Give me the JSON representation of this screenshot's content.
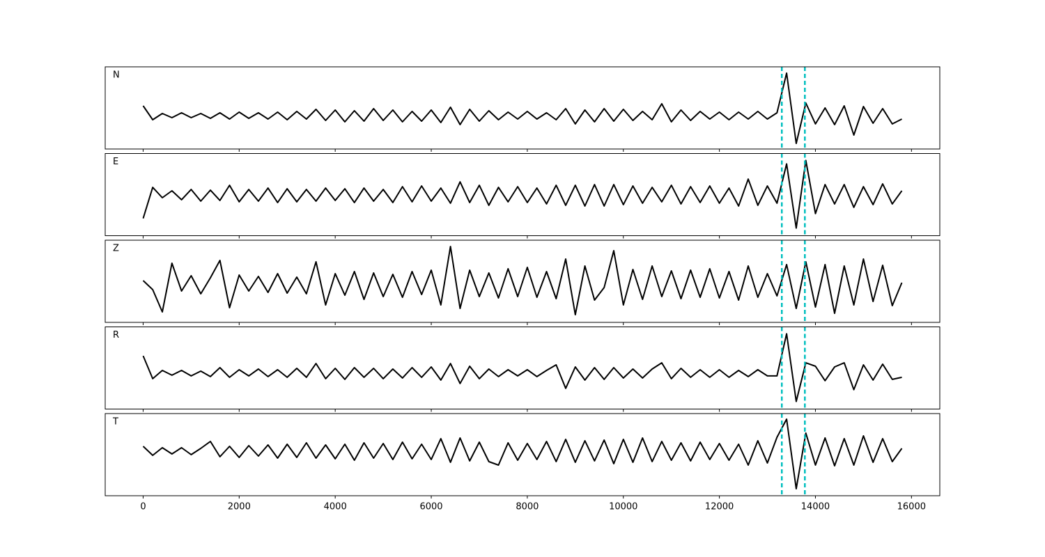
{
  "chart_data": {
    "type": "line",
    "subplots": true,
    "x": [
      0,
      200,
      400,
      600,
      800,
      1000,
      1200,
      1400,
      1600,
      1800,
      2000,
      2200,
      2400,
      2600,
      2800,
      3000,
      3200,
      3400,
      3600,
      3800,
      4000,
      4200,
      4400,
      4600,
      4800,
      5000,
      5200,
      5400,
      5600,
      5800,
      6000,
      6200,
      6400,
      6600,
      6800,
      7000,
      7200,
      7400,
      7600,
      7800,
      8000,
      8200,
      8400,
      8600,
      8800,
      9000,
      9200,
      9400,
      9600,
      9800,
      10000,
      10200,
      10400,
      10600,
      10800,
      11000,
      11200,
      11400,
      11600,
      11800,
      12000,
      12200,
      12400,
      12600,
      12800,
      13000,
      13200,
      13400,
      13600,
      13800,
      14000,
      14200,
      14400,
      14600,
      14800,
      15000,
      15200,
      15400,
      15600,
      15800
    ],
    "xlim": [
      -790,
      16590
    ],
    "xticks": [
      0,
      2000,
      4000,
      6000,
      8000,
      10000,
      12000,
      14000,
      16000
    ],
    "vlines": [
      13300,
      13780
    ],
    "vline_color": "#00bfbf",
    "series": [
      {
        "name": "N",
        "color": "#000000",
        "ylim": [
          -4.8,
          7.0
        ],
        "values": [
          1.4,
          -0.6,
          0.3,
          -0.3,
          0.4,
          -0.3,
          0.3,
          -0.4,
          0.4,
          -0.5,
          0.5,
          -0.4,
          0.4,
          -0.5,
          0.5,
          -0.6,
          0.6,
          -0.5,
          0.9,
          -0.7,
          0.8,
          -0.9,
          0.7,
          -0.8,
          1.0,
          -0.7,
          0.8,
          -0.9,
          0.6,
          -0.8,
          0.8,
          -1.0,
          1.2,
          -1.3,
          0.9,
          -0.8,
          0.7,
          -0.6,
          0.5,
          -0.5,
          0.6,
          -0.5,
          0.4,
          -0.6,
          1.0,
          -1.2,
          0.8,
          -0.9,
          1.0,
          -0.8,
          0.9,
          -0.7,
          0.6,
          -0.6,
          1.7,
          -0.9,
          0.8,
          -0.7,
          0.6,
          -0.5,
          0.5,
          -0.6,
          0.5,
          -0.5,
          0.6,
          -0.5,
          0.4,
          6.1,
          -4.0,
          1.8,
          -1.2,
          1.1,
          -1.3,
          1.4,
          -2.8,
          1.3,
          -1.1,
          1.0,
          -1.2,
          -0.5
        ]
      },
      {
        "name": "E",
        "color": "#000000",
        "ylim": [
          -5.9,
          6.0
        ],
        "values": [
          -3.4,
          1.1,
          -0.4,
          0.6,
          -0.7,
          0.8,
          -0.9,
          0.7,
          -0.8,
          1.4,
          -1.0,
          0.8,
          -0.9,
          1.0,
          -1.1,
          0.9,
          -1.0,
          0.8,
          -0.9,
          1.0,
          -0.8,
          0.9,
          -1.1,
          1.0,
          -0.9,
          0.8,
          -1.1,
          1.2,
          -1.0,
          1.3,
          -0.9,
          1.0,
          -1.2,
          1.9,
          -1.1,
          1.4,
          -1.5,
          1.1,
          -1.0,
          1.2,
          -1.1,
          1.0,
          -1.3,
          1.4,
          -1.5,
          1.4,
          -1.6,
          1.5,
          -1.6,
          1.5,
          -1.4,
          1.3,
          -1.2,
          1.1,
          -1.0,
          1.4,
          -1.3,
          1.2,
          -1.1,
          1.3,
          -1.2,
          1.0,
          -1.6,
          2.3,
          -1.5,
          1.3,
          -1.2,
          4.5,
          -4.8,
          5.0,
          -2.7,
          1.5,
          -1.3,
          1.5,
          -1.8,
          1.2,
          -1.4,
          1.6,
          -1.3,
          0.6
        ]
      },
      {
        "name": "Z",
        "color": "#000000",
        "ylim": [
          -5.5,
          6.3
        ],
        "values": [
          0.5,
          -0.8,
          -4.0,
          3.0,
          -1.0,
          1.2,
          -1.4,
          0.9,
          3.4,
          -3.4,
          1.3,
          -1.0,
          1.1,
          -1.2,
          1.5,
          -1.3,
          1.0,
          -1.4,
          3.2,
          -3.0,
          1.5,
          -1.6,
          1.8,
          -2.2,
          1.6,
          -1.8,
          1.4,
          -1.9,
          1.8,
          -1.5,
          2.0,
          -3.0,
          5.4,
          -3.5,
          2.0,
          -1.8,
          1.6,
          -2.0,
          2.2,
          -1.8,
          2.4,
          -1.9,
          1.8,
          -2.1,
          3.6,
          -4.4,
          2.6,
          -2.3,
          -0.5,
          4.8,
          -3.0,
          2.1,
          -2.2,
          2.6,
          -1.8,
          1.9,
          -2.1,
          2.0,
          -1.9,
          2.2,
          -2.0,
          1.8,
          -2.3,
          2.6,
          -1.9,
          1.5,
          -1.7,
          2.8,
          -3.5,
          3.2,
          -3.3,
          2.8,
          -4.2,
          2.6,
          -3.0,
          3.6,
          -2.5,
          2.7,
          -3.1,
          0.2
        ]
      },
      {
        "name": "R",
        "color": "#000000",
        "ylim": [
          -5.2,
          6.7
        ],
        "values": [
          2.5,
          -0.8,
          0.4,
          -0.3,
          0.4,
          -0.4,
          0.3,
          -0.5,
          0.8,
          -0.6,
          0.5,
          -0.4,
          0.6,
          -0.5,
          0.5,
          -0.6,
          0.7,
          -0.6,
          1.4,
          -0.8,
          0.7,
          -0.9,
          0.8,
          -0.6,
          0.7,
          -0.8,
          0.6,
          -0.7,
          0.8,
          -0.6,
          0.9,
          -1.0,
          1.4,
          -1.5,
          1.0,
          -0.8,
          0.6,
          -0.5,
          0.5,
          -0.4,
          0.5,
          -0.5,
          0.4,
          1.2,
          -2.2,
          0.9,
          -1.0,
          0.8,
          -0.9,
          0.8,
          -0.7,
          0.6,
          -0.7,
          0.6,
          1.5,
          -0.8,
          0.7,
          -0.6,
          0.5,
          -0.6,
          0.5,
          -0.6,
          0.4,
          -0.5,
          0.5,
          -0.4,
          -0.4,
          5.7,
          -4.1,
          1.5,
          1.0,
          -1.1,
          0.9,
          1.5,
          -2.4,
          1.2,
          -1.0,
          1.3,
          -0.9,
          -0.6
        ]
      },
      {
        "name": "T",
        "color": "#000000",
        "ylim": [
          -6.4,
          5.4
        ],
        "values": [
          0.7,
          -0.6,
          0.5,
          -0.4,
          0.5,
          -0.5,
          0.4,
          1.4,
          -0.8,
          0.7,
          -0.9,
          0.8,
          -0.7,
          0.9,
          -1.0,
          1.0,
          -0.9,
          1.2,
          -1.0,
          0.9,
          -1.1,
          1.0,
          -1.3,
          1.2,
          -1.0,
          1.1,
          -1.2,
          1.3,
          -1.1,
          1.0,
          -1.2,
          1.8,
          -1.6,
          1.9,
          -1.4,
          1.3,
          -1.5,
          -2.0,
          1.2,
          -1.3,
          1.1,
          -1.2,
          1.4,
          -1.5,
          1.7,
          -1.6,
          1.5,
          -1.4,
          1.6,
          -1.8,
          1.7,
          -1.6,
          1.9,
          -1.5,
          1.4,
          -1.3,
          1.2,
          -1.4,
          1.3,
          -1.2,
          1.1,
          -1.3,
          1.0,
          -2.0,
          1.5,
          -1.7,
          2.0,
          4.6,
          -5.4,
          2.6,
          -2.0,
          1.9,
          -2.1,
          1.8,
          -2.0,
          2.2,
          -1.6,
          1.8,
          -1.5,
          0.4
        ]
      }
    ]
  }
}
